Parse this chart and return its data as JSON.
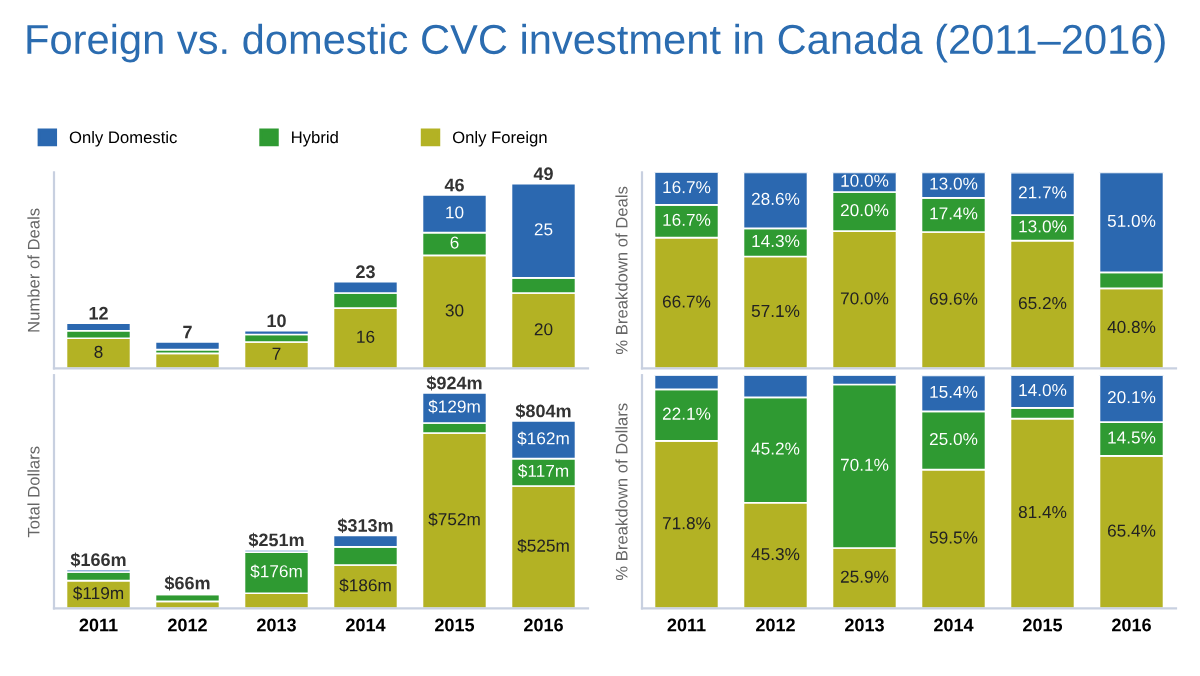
{
  "chart_data": [
    {
      "type": "bar",
      "title": "Foreign vs. domestic CVC investment in Canada (2011–2016)",
      "ylabel": "Number of Deals",
      "categories": [
        "2011",
        "2012",
        "2013",
        "2014",
        "2015",
        "2016"
      ],
      "stacked": true,
      "legend": "top",
      "tick_labels": false,
      "ylim": [
        0,
        52
      ],
      "series": [
        {
          "name": "Only Foreign",
          "color": "#b3b224",
          "values": [
            8,
            4,
            7,
            16,
            30,
            20
          ],
          "value_labels": [
            "8",
            null,
            "7",
            "16",
            "30",
            "20"
          ]
        },
        {
          "name": "Hybrid",
          "color": "#2f9a32",
          "values": [
            2,
            1,
            2,
            4,
            6,
            4
          ],
          "value_labels": [
            null,
            null,
            null,
            null,
            "6",
            null
          ]
        },
        {
          "name": "Only Domestic",
          "color": "#2b68b0",
          "values": [
            2,
            2,
            1,
            3,
            10,
            25
          ],
          "value_labels": [
            null,
            null,
            null,
            null,
            "10",
            "25"
          ]
        }
      ],
      "totals": [
        "12",
        "7",
        "10",
        "23",
        "46",
        "49"
      ]
    },
    {
      "type": "bar",
      "ylabel": "% Breakdown of Deals",
      "categories": [
        "2011",
        "2012",
        "2013",
        "2014",
        "2015",
        "2016"
      ],
      "stacked": true,
      "tick_labels": false,
      "ylim": [
        0,
        100
      ],
      "series": [
        {
          "color": "#b3b224",
          "values": [
            66.7,
            57.1,
            70.0,
            69.6,
            65.2,
            40.8
          ],
          "value_labels": [
            "66.7%",
            "57.1%",
            "70.0%",
            "69.6%",
            "65.2%",
            "40.8%"
          ]
        },
        {
          "color": "#2f9a32",
          "values": [
            16.7,
            14.3,
            20.0,
            17.4,
            13.0,
            8.2
          ],
          "value_labels": [
            "16.7%",
            "14.3%",
            "20.0%",
            "17.4%",
            "13.0%",
            null
          ]
        },
        {
          "color": "#2b68b0",
          "values": [
            16.7,
            28.6,
            10.0,
            13.0,
            21.7,
            51.0
          ],
          "value_labels": [
            "16.7%",
            "28.6%",
            "10.0%",
            "13.0%",
            "21.7%",
            "51.0%"
          ]
        }
      ]
    },
    {
      "type": "bar",
      "ylabel": "Total Dollars",
      "categories": [
        "2011",
        "2012",
        "2013",
        "2014",
        "2015",
        "2016"
      ],
      "stacked": true,
      "tick_labels": "x",
      "ylim": [
        0,
        1000
      ],
      "series": [
        {
          "color": "#b3b224",
          "values": [
            119,
            30,
            65,
            186,
            752,
            525
          ],
          "value_labels": [
            "$119m",
            null,
            null,
            "$186m",
            "$752m",
            "$525m"
          ]
        },
        {
          "color": "#2f9a32",
          "values": [
            37,
            30,
            176,
            78,
            43,
            117
          ],
          "value_labels": [
            null,
            null,
            "$176m",
            null,
            null,
            "$117m"
          ]
        },
        {
          "color": "#2b68b0",
          "values": [
            10,
            6,
            10,
            49,
            129,
            162
          ],
          "value_labels": [
            null,
            null,
            null,
            null,
            "$129m",
            "$162m"
          ]
        }
      ],
      "totals": [
        "$166m",
        "$66m",
        "$251m",
        "$313m",
        "$924m",
        "$804m"
      ]
    },
    {
      "type": "bar",
      "ylabel": "% Breakdown of Dollars",
      "categories": [
        "2011",
        "2012",
        "2013",
        "2014",
        "2015",
        "2016"
      ],
      "stacked": true,
      "tick_labels": "x",
      "ylim": [
        0,
        100
      ],
      "series": [
        {
          "color": "#b3b224",
          "values": [
            71.8,
            45.3,
            25.9,
            59.5,
            81.4,
            65.4
          ],
          "value_labels": [
            "71.8%",
            "45.3%",
            "25.9%",
            "59.5%",
            "81.4%",
            "65.4%"
          ]
        },
        {
          "color": "#2f9a32",
          "values": [
            22.1,
            45.2,
            70.1,
            25.0,
            4.6,
            14.5
          ],
          "value_labels": [
            "22.1%",
            "45.2%",
            "70.1%",
            "25.0%",
            null,
            "14.5%"
          ]
        },
        {
          "color": "#2b68b0",
          "values": [
            6.1,
            9.5,
            4.0,
            15.4,
            14.0,
            20.1
          ],
          "value_labels": [
            null,
            null,
            null,
            "15.4%",
            "14.0%",
            "20.1%"
          ]
        }
      ]
    }
  ]
}
